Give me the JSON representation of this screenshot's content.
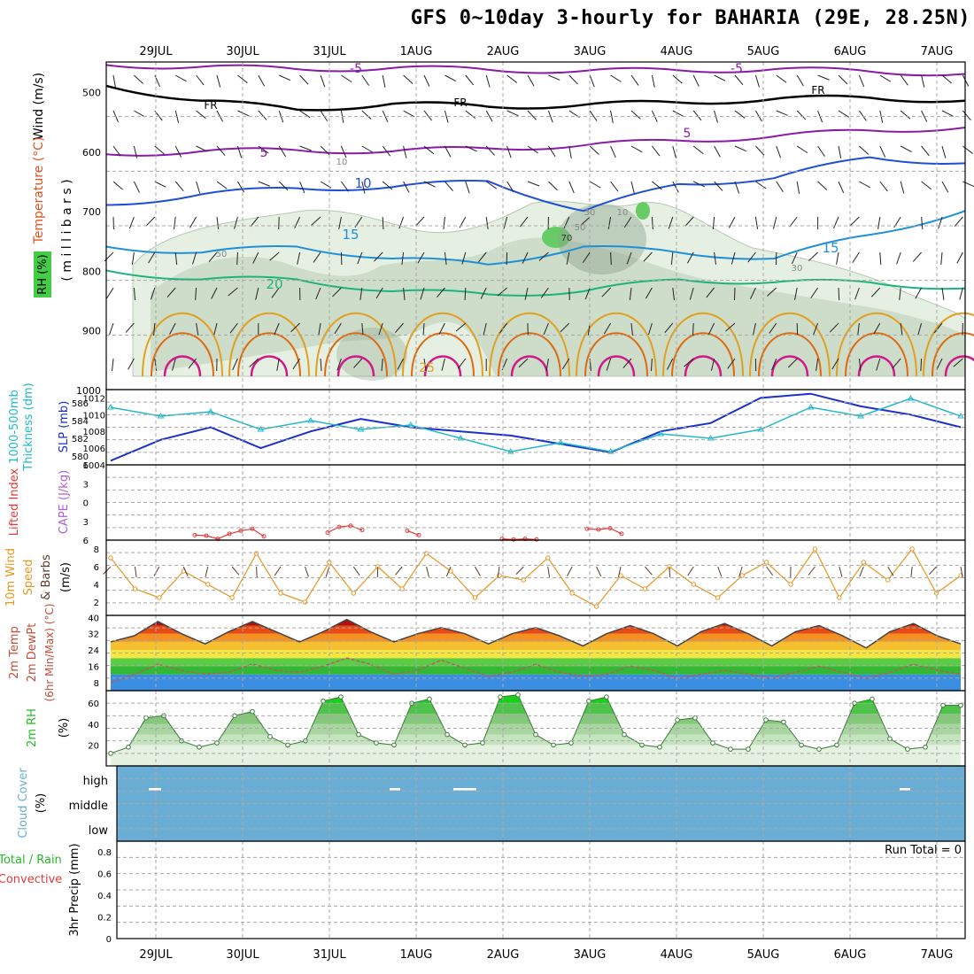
{
  "title": "GFS 0~10day 3-hourly for BAHARIA (29E, 28.25N)",
  "colors": {
    "frame": "#000000",
    "grid": "#a8a8a8",
    "rh_fill_light": "#e6f0e2",
    "rh_fill_mid": "#b9ccb6",
    "rh_fill_dark": "#8fa58d",
    "rh_fill_bright": "#66cc66",
    "iso_m5": "#8a1aa8",
    "iso_fr": "#000000",
    "iso_5": "#8a1aa8",
    "iso_10": "#1f4fd6",
    "iso_15": "#1e90d8",
    "iso_20": "#1db37a",
    "iso_25": "#e0a020",
    "iso_30": "#e06a10",
    "iso_35": "#d01a8a",
    "slp": "#1a2fcc",
    "thickness": "#22b8c8",
    "lifted_index": "#e03a3a",
    "cape": "#b060d0",
    "wind_speed": "#e8961e",
    "wind_barb": "#5a3a2a",
    "temp": "#444444",
    "dewpt": "#b06060",
    "rh2m": "#22bb22",
    "cloud": "#6aaed6",
    "precip_total": "#22bb22",
    "precip_conv": "#e03a3a"
  },
  "chart_data": [
    {
      "panel": "upper-air",
      "type": "contour",
      "ylabel": [
        "Wind (m/s)",
        "Temperature (°C)",
        "RH (%)"
      ],
      "ylabel_units": "( m i l l i b a r s )",
      "y_ticks": [
        500,
        600,
        700,
        800,
        900,
        1000
      ],
      "ylim": [
        1000,
        450
      ],
      "x_ticks": [
        "29JUL",
        "30JUL",
        "31JUL",
        "1AUG",
        "2AUG",
        "3AUG",
        "4AUG",
        "5AUG",
        "6AUG",
        "7AUG"
      ],
      "contour_labels": [
        "-5",
        "-5",
        "FR",
        "FR",
        "FR",
        "5",
        "5",
        "10",
        "15",
        "15",
        "20",
        "25",
        "10",
        "30",
        "50",
        "50",
        "10",
        "30",
        "70"
      ],
      "isotherms": [
        {
          "name": "-5",
          "level_hpa": [
            455,
            458,
            462,
            460,
            463,
            465,
            464,
            462,
            466,
            470
          ]
        },
        {
          "name": "FR",
          "level_hpa": [
            490,
            515,
            530,
            520,
            525,
            522,
            518,
            512,
            510,
            515
          ]
        },
        {
          "name": "5",
          "level_hpa": [
            605,
            600,
            598,
            600,
            595,
            590,
            582,
            575,
            565,
            560
          ]
        },
        {
          "name": "10",
          "level_hpa": [
            690,
            672,
            662,
            660,
            650,
            700,
            655,
            645,
            610,
            620
          ]
        },
        {
          "name": "15",
          "level_hpa": [
            760,
            770,
            760,
            780,
            790,
            760,
            770,
            780,
            740,
            700
          ]
        },
        {
          "name": "20",
          "level_hpa": [
            800,
            815,
            815,
            835,
            840,
            835,
            815,
            820,
            820,
            830
          ]
        }
      ],
      "rh_shading_levels": [
        30,
        50,
        70,
        90
      ]
    },
    {
      "panel": "slp-thickness",
      "type": "line",
      "ylabel": [
        "1000-500mb",
        "Thickness (dm)",
        "SLP (mb)"
      ],
      "y_ticks_left": [
        580,
        582,
        584,
        586
      ],
      "y_ticks_right": [
        1004,
        1006,
        1008,
        1010,
        1012
      ],
      "series": [
        {
          "name": "SLP (mb)",
          "values": [
            1004.5,
            1007.0,
            1008.5,
            1006.0,
            1008.0,
            1009.5,
            1008.5,
            1008.0,
            1007.5,
            1006.5,
            1005.5,
            1008.0,
            1009.0,
            1012.0,
            1012.5,
            1011.0,
            1010.0,
            1008.5
          ]
        },
        {
          "name": "1000-500mb Thickness (dm)",
          "values": [
            585.5,
            584.5,
            585.0,
            583.0,
            584.0,
            583.0,
            583.5,
            582.0,
            580.5,
            581.5,
            580.5,
            582.5,
            582.0,
            583.0,
            585.5,
            584.5,
            586.5,
            584.5
          ]
        }
      ]
    },
    {
      "panel": "lifted-index",
      "type": "line",
      "ylabel": [
        "Lifted Index",
        "CAPE (J/kg)"
      ],
      "y_ticks": [
        -6,
        -3,
        0,
        3,
        6
      ],
      "y_tick_labels": [
        "6",
        "3",
        "0",
        "3",
        "6"
      ],
      "segments": [
        {
          "name": "Lifted Index",
          "values": [
            5.2,
            5.3,
            5.8,
            5.0,
            4.5,
            4.2,
            5.4
          ]
        },
        {
          "name": "Lifted Index",
          "values": [
            4.8,
            3.9,
            3.7,
            4.4
          ]
        },
        {
          "name": "Lifted Index",
          "values": [
            4.5,
            5.2
          ]
        },
        {
          "name": "Lifted Index",
          "values": [
            5.8,
            5.9,
            5.8,
            5.9
          ]
        },
        {
          "name": "Lifted Index",
          "values": [
            4.2,
            4.3,
            4.1,
            5.0
          ]
        }
      ]
    },
    {
      "panel": "wind-10m",
      "type": "line",
      "ylabel": [
        "10m Wind",
        "Speed",
        "& Barbs",
        "(m/s)"
      ],
      "y_ticks": [
        2,
        4,
        6,
        8
      ],
      "series": [
        {
          "name": "10m Wind Speed",
          "values": [
            7.0,
            3.5,
            2.5,
            5.5,
            4.0,
            2.5,
            7.5,
            3.0,
            2.0,
            6.5,
            3.0,
            6.0,
            3.5,
            7.5,
            5.5,
            2.5,
            5.0,
            4.5,
            7.0,
            3.0,
            1.5,
            5.0,
            3.5,
            6.0,
            4.0,
            2.5,
            5.0,
            6.5,
            4.0,
            8.0,
            2.5,
            6.5,
            4.5,
            8.0,
            3.0,
            5.0
          ]
        }
      ]
    },
    {
      "panel": "temperature",
      "type": "area",
      "ylabel": [
        "2m Temp",
        "2m DewPt",
        "(6hr Min/Max) (°C)"
      ],
      "y_ticks": [
        8,
        16,
        24,
        32,
        40
      ],
      "series": [
        {
          "name": "2m Temp",
          "values": [
            28,
            31,
            38,
            32,
            27,
            33,
            38,
            33,
            28,
            33,
            39,
            33,
            28,
            32,
            35,
            32,
            27,
            32,
            35,
            31,
            26,
            32,
            36,
            32,
            26,
            33,
            37,
            32,
            26,
            33,
            36,
            31,
            25,
            33,
            37,
            31,
            27
          ]
        },
        {
          "name": "2m DewPt",
          "values": [
            8,
            12,
            17,
            14,
            12,
            13,
            17,
            14,
            13,
            16,
            20,
            17,
            12,
            14,
            19,
            15,
            11,
            13,
            17,
            13,
            11,
            12,
            16,
            14,
            10,
            12,
            14,
            12,
            10,
            13,
            16,
            13,
            10,
            13,
            17,
            14,
            12
          ]
        }
      ]
    },
    {
      "panel": "rh-2m",
      "type": "area",
      "ylabel": [
        "2m RH",
        "(%)"
      ],
      "y_ticks": [
        20,
        40,
        60
      ],
      "series": [
        {
          "name": "2m RH",
          "values": [
            12,
            18,
            46,
            48,
            24,
            18,
            22,
            48,
            52,
            28,
            20,
            24,
            62,
            66,
            30,
            22,
            20,
            60,
            64,
            30,
            20,
            22,
            66,
            68,
            30,
            20,
            22,
            62,
            66,
            30,
            20,
            18,
            44,
            46,
            22,
            16,
            16,
            44,
            42,
            20,
            16,
            20,
            60,
            64,
            26,
            16,
            18,
            58,
            58
          ]
        }
      ]
    },
    {
      "panel": "cloud-cover",
      "type": "heatmap",
      "ylabel": [
        "Cloud Cover",
        "(%)"
      ],
      "y_tick_labels": [
        "high",
        "middle",
        "low"
      ]
    },
    {
      "panel": "precip",
      "type": "bar",
      "ylabel": [
        "Total / Rain",
        "Convective",
        "3hr Precip (mm)"
      ],
      "y_ticks": [
        0,
        0.2,
        0.4,
        0.6,
        0.8
      ],
      "annotation": "Run Total = 0",
      "values": []
    }
  ]
}
